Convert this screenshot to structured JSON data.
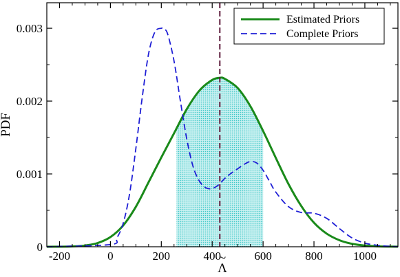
{
  "chart_data": {
    "type": "line",
    "title": "",
    "xlabel": "Λ",
    "xlabel_accent": "~",
    "ylabel": "PDF",
    "xlim": [
      -250,
      1130
    ],
    "ylim": [
      0,
      0.00335
    ],
    "x_ticks": [
      -200,
      0,
      200,
      400,
      600,
      800,
      1000
    ],
    "x_tick_labels": [
      "-200",
      "0",
      "200",
      "400",
      "600",
      "800",
      "1000"
    ],
    "y_ticks": [
      0,
      0.001,
      0.002,
      0.003
    ],
    "y_tick_labels": [
      "0",
      "0.001",
      "0.002",
      "0.003"
    ],
    "grid": false,
    "legend": "top-right",
    "series": [
      {
        "name": "Estimated Priors",
        "style": "solid",
        "color": "#1a8a1a",
        "x": [
          -250,
          -200,
          -150,
          -100,
          -50,
          0,
          50,
          100,
          150,
          200,
          250,
          300,
          350,
          400,
          430,
          450,
          500,
          550,
          600,
          650,
          700,
          750,
          800,
          850,
          900,
          950,
          1000,
          1050,
          1100,
          1130
        ],
        "y": [
          4e-07,
          1.2e-06,
          4.9e-06,
          1.72e-05,
          5.16e-05,
          0.000133,
          0.000292,
          0.000549,
          0.000886,
          0.001226,
          0.001558,
          0.001889,
          0.002145,
          0.00229,
          0.00232,
          0.002305,
          0.00218,
          0.00193,
          0.00159,
          0.00122,
          0.00086,
          0.00056,
          0.00033,
          0.00018,
          9e-05,
          4e-05,
          1.6e-05,
          6e-06,
          2e-06,
          1e-06
        ]
      },
      {
        "name": "Complete Priors",
        "style": "dashed",
        "color": "#1f1fd6",
        "x": [
          -250,
          0,
          25,
          50,
          75,
          100,
          125,
          150,
          175,
          200,
          210,
          225,
          250,
          275,
          300,
          325,
          350,
          375,
          400,
          425,
          450,
          475,
          500,
          525,
          550,
          575,
          600,
          625,
          650,
          700,
          750,
          800,
          850,
          900,
          950,
          1000,
          1050,
          1100,
          1130
        ],
        "y": [
          0,
          3e-05,
          0.00012,
          0.00032,
          0.00072,
          0.00135,
          0.00205,
          0.00265,
          0.00295,
          0.003,
          0.00299,
          0.00292,
          0.00255,
          0.002,
          0.00148,
          0.0011,
          0.0009,
          0.00081,
          0.0008,
          0.00085,
          0.00094,
          0.00101,
          0.00107,
          0.00113,
          0.00117,
          0.00115,
          0.00105,
          0.0009,
          0.00075,
          0.00055,
          0.00047,
          0.00046,
          0.00039,
          0.00025,
          0.00012,
          5e-05,
          2e-05,
          5e-06,
          2e-06
        ]
      }
    ],
    "shaded_interval": {
      "series": "Estimated Priors",
      "x": [
        260,
        600
      ],
      "color": "#3fd0d0"
    },
    "vline": {
      "x": 430,
      "style": "dashed",
      "color": "#5c1a3a"
    }
  },
  "colors": {
    "axis": "#000000",
    "background": "#ffffff"
  }
}
